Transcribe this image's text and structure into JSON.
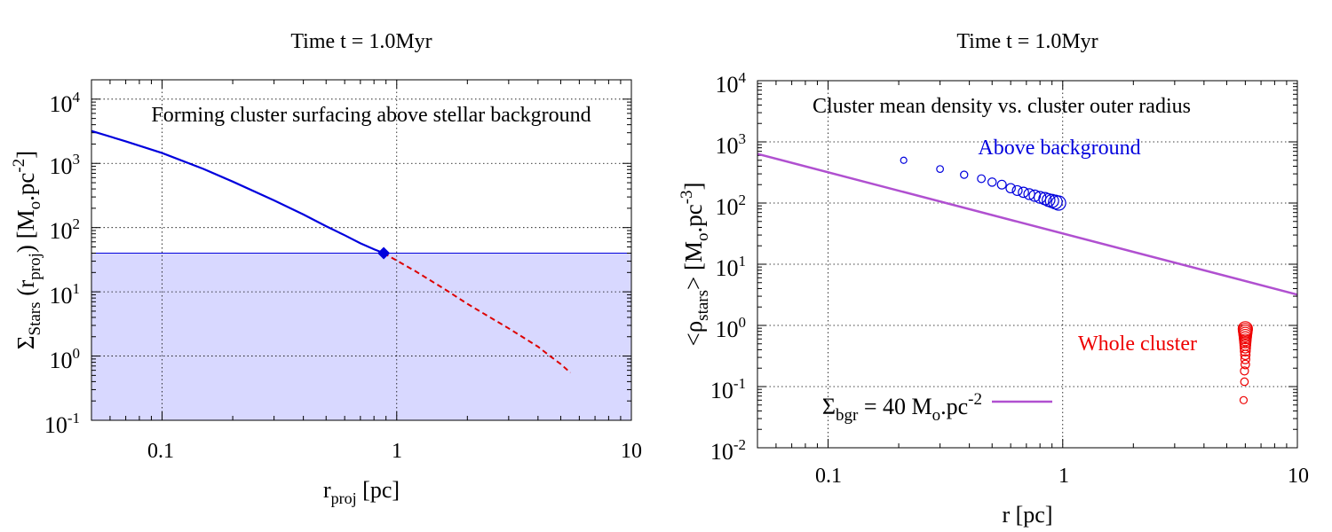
{
  "chart_data": [
    {
      "type": "line",
      "title": "Time t = 1.0Myr",
      "annotation": "Forming cluster surfacing above stellar background",
      "xlabel": "r_proj [pc]",
      "ylabel": "Σ_Stars (r_proj) [M_o.pc^-2]",
      "xscale": "log",
      "yscale": "log",
      "xlim": [
        0.05,
        10
      ],
      "ylim": [
        0.1,
        20000
      ],
      "grid": true,
      "x_tick_labels": [
        "0.1",
        "1",
        "10"
      ],
      "y_tick_labels": [
        "10^-1",
        "10^0",
        "10^1",
        "10^2",
        "10^3",
        "10^4"
      ],
      "background_level": 40,
      "colors": {
        "above": "#0000dd",
        "below": "#dd0000",
        "fill": "#d8d8ff"
      },
      "series": [
        {
          "x": [
            0.05,
            0.07,
            0.1,
            0.15,
            0.2,
            0.3,
            0.4,
            0.5,
            0.6,
            0.7,
            0.8,
            0.88
          ],
          "y": [
            3200,
            2200,
            1450,
            820,
            520,
            265,
            160,
            105,
            76,
            57,
            46,
            40
          ]
        },
        {
          "x": [
            0.88,
            1.2,
            1.6,
            2.0,
            2.5,
            3.0,
            3.5,
            4.0,
            4.5,
            5.0,
            5.5
          ],
          "y": [
            40,
            21,
            11,
            6.5,
            4.0,
            2.7,
            1.9,
            1.4,
            1.0,
            0.75,
            0.55
          ]
        }
      ],
      "marker": {
        "x": 0.88,
        "y": 40
      }
    },
    {
      "type": "scatter",
      "title": "Time t = 1.0Myr",
      "annotation": "Cluster mean density vs. cluster outer radius",
      "xlabel": "r [pc]",
      "ylabel": "<ρ_stars> [M_o.pc^-3]",
      "xscale": "log",
      "yscale": "log",
      "xlim": [
        0.05,
        10
      ],
      "ylim": [
        0.01,
        10000
      ],
      "grid": true,
      "x_tick_labels": [
        "0.1",
        "1",
        "10"
      ],
      "y_tick_labels": [
        "10^-2",
        "10^-1",
        "10^0",
        "10^1",
        "10^2",
        "10^3",
        "10^4"
      ],
      "legend": {
        "label": "Σ_bgr = 40 M_o.pc^-2",
        "placement": "bottom-left"
      },
      "colors": {
        "above": "#0000dd",
        "whole": "#ee0000",
        "line": "#b050d0"
      },
      "series": [
        {
          "name": "Above background",
          "x": [
            0.21,
            0.3,
            0.38,
            0.45,
            0.5,
            0.55,
            0.6,
            0.64,
            0.68,
            0.72,
            0.76,
            0.8,
            0.84,
            0.87,
            0.9,
            0.93,
            0.96
          ],
          "y": [
            500,
            360,
            290,
            250,
            220,
            200,
            175,
            160,
            150,
            140,
            132,
            124,
            118,
            112,
            108,
            104,
            100
          ]
        },
        {
          "name": "Whole cluster",
          "x": [
            5.9,
            5.95,
            5.95,
            6.0,
            6.0,
            6.0,
            6.0,
            6.0,
            6.0,
            6.0,
            6.0,
            6.0,
            6.0,
            6.0,
            6.0,
            6.0,
            6.0
          ],
          "y": [
            0.06,
            0.12,
            0.18,
            0.23,
            0.28,
            0.33,
            0.38,
            0.43,
            0.48,
            0.53,
            0.58,
            0.63,
            0.68,
            0.73,
            0.78,
            0.83,
            0.88
          ]
        }
      ],
      "background_line": {
        "x": [
          0.05,
          10
        ],
        "y": [
          636.6,
          3.183
        ]
      }
    }
  ]
}
